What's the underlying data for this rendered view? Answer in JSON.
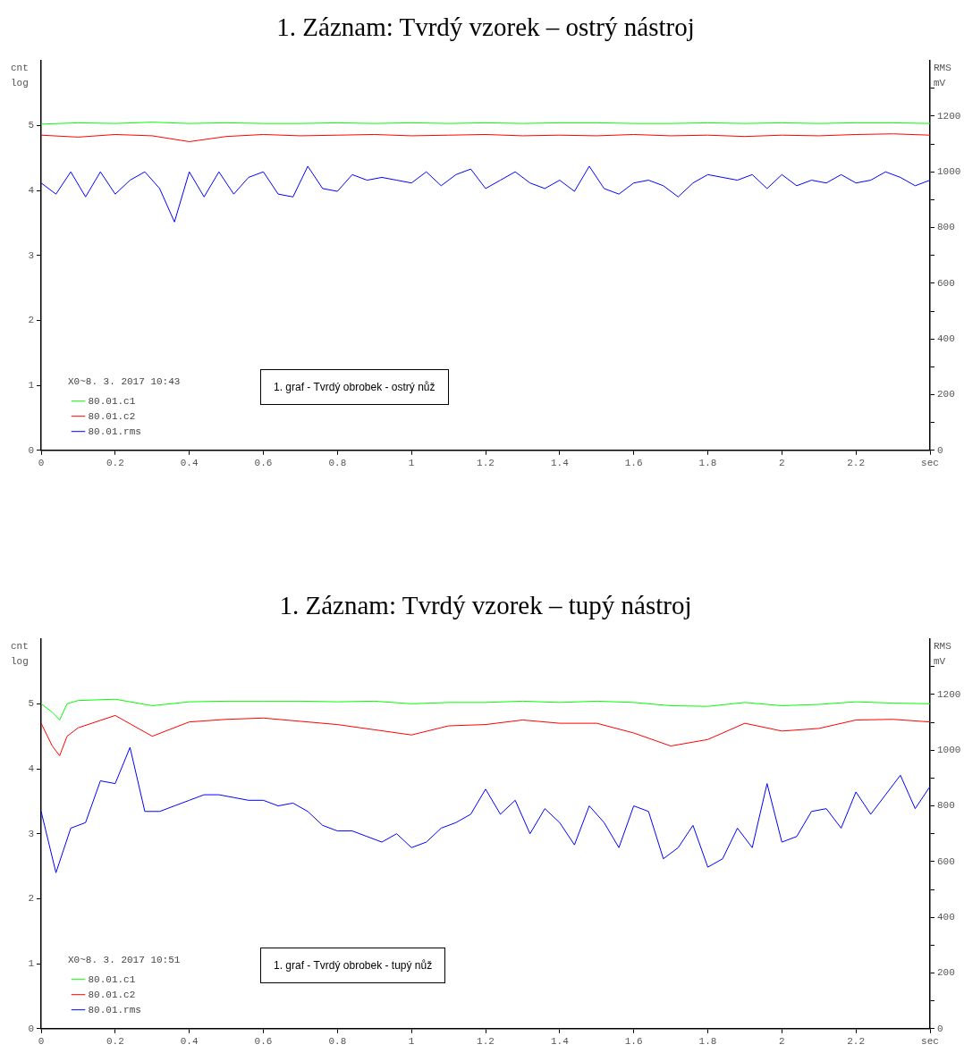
{
  "chart_data": [
    {
      "type": "line",
      "title": "1. Záznam: Tvrdý vzorek – ostrý nástroj",
      "ylabel": "cnt log",
      "y2label": "RMS mV",
      "legend": "bottom left",
      "legend_title": "X0~8. 3. 2017 10:43",
      "annotations": [
        "1. graf - Tvrdý obrobek - ostrý nůž"
      ],
      "x": [
        0,
        0.04,
        0.08,
        0.12,
        0.16,
        0.2,
        0.24,
        0.28,
        0.32,
        0.36,
        0.4,
        0.44,
        0.48,
        0.52,
        0.56,
        0.6,
        0.64,
        0.68,
        0.72,
        0.76,
        0.8,
        0.84,
        0.88,
        0.92,
        0.96,
        1,
        1.04,
        1.08,
        1.12,
        1.16,
        1.2,
        1.24,
        1.28,
        1.32,
        1.36,
        1.4,
        1.44,
        1.48,
        1.52,
        1.56,
        1.6,
        1.64,
        1.68,
        1.72,
        1.76,
        1.8,
        1.84,
        1.88,
        1.92,
        1.96,
        2,
        2.04,
        2.08,
        2.12,
        2.16,
        2.2,
        2.24,
        2.28,
        2.32,
        2.36,
        2.4
      ],
      "xlim": [
        0,
        2.4
      ],
      "xticks": [
        0,
        0.2,
        0.4,
        0.6,
        0.8,
        1,
        1.2,
        1.4,
        1.6,
        1.8,
        2,
        2.2,
        {
          "value": 2.4,
          "label": "sec"
        }
      ],
      "ylim": [
        0,
        6
      ],
      "yticks": [
        0,
        1,
        2,
        3,
        4,
        5
      ],
      "y2lim": [
        0,
        1400
      ],
      "y2ticks": [
        0,
        {
          "value": 100,
          "label": null
        },
        200,
        {
          "value": 300,
          "label": null
        },
        400,
        {
          "value": 500,
          "label": null
        },
        600,
        {
          "value": 700,
          "label": null
        },
        800,
        {
          "value": 900,
          "label": null
        },
        1000,
        {
          "value": 1100,
          "label": null
        },
        1200,
        {
          "value": 1300,
          "label": null
        }
      ],
      "series": [
        {
          "name": "80.01.c1",
          "color": "#00ff00",
          "x": [
            0,
            0.1,
            0.2,
            0.3,
            0.4,
            0.5,
            0.6,
            0.7,
            0.8,
            0.9,
            1,
            1.1,
            1.2,
            1.3,
            1.4,
            1.5,
            1.6,
            1.7,
            1.8,
            1.9,
            2,
            2.1,
            2.2,
            2.3,
            2.4
          ],
          "values": [
            5.02,
            5.04,
            5.03,
            5.05,
            5.03,
            5.04,
            5.03,
            5.03,
            5.04,
            5.03,
            5.04,
            5.03,
            5.04,
            5.03,
            5.04,
            5.04,
            5.03,
            5.03,
            5.04,
            5.03,
            5.04,
            5.03,
            5.04,
            5.04,
            5.03
          ]
        },
        {
          "name": "80.01.c2",
          "color": "#ff0000",
          "x": [
            0,
            0.1,
            0.2,
            0.3,
            0.4,
            0.5,
            0.6,
            0.7,
            0.8,
            0.9,
            1,
            1.1,
            1.2,
            1.3,
            1.4,
            1.5,
            1.6,
            1.7,
            1.8,
            1.9,
            2,
            2.1,
            2.2,
            2.3,
            2.4
          ],
          "values": [
            4.85,
            4.82,
            4.86,
            4.84,
            4.75,
            4.83,
            4.86,
            4.84,
            4.85,
            4.86,
            4.84,
            4.85,
            4.86,
            4.84,
            4.85,
            4.84,
            4.86,
            4.84,
            4.85,
            4.83,
            4.85,
            4.84,
            4.86,
            4.87,
            4.85
          ]
        },
        {
          "name": "80.01.rms",
          "color": "#0000ff",
          "axis": "y2",
          "values": [
            960,
            920,
            1000,
            910,
            1000,
            920,
            970,
            1000,
            940,
            820,
            1000,
            910,
            1000,
            920,
            980,
            1000,
            920,
            910,
            1020,
            940,
            930,
            990,
            970,
            980,
            970,
            960,
            1000,
            950,
            990,
            1010,
            940,
            970,
            1000,
            960,
            940,
            970,
            930,
            1020,
            940,
            920,
            960,
            970,
            950,
            910,
            960,
            990,
            980,
            970,
            990,
            940,
            990,
            950,
            970,
            960,
            990,
            960,
            970,
            1000,
            980,
            950,
            970
          ]
        }
      ]
    },
    {
      "type": "line",
      "title": "1. Záznam: Tvrdý vzorek – tupý nástroj",
      "ylabel": "cnt log",
      "y2label": "RMS mV",
      "legend": "bottom left",
      "legend_title": "X0~8. 3. 2017 10:51",
      "annotations": [
        "1. graf - Tvrdý obrobek - tupý nůž"
      ],
      "x": [
        0,
        0.04,
        0.08,
        0.12,
        0.16,
        0.2,
        0.24,
        0.28,
        0.32,
        0.36,
        0.4,
        0.44,
        0.48,
        0.52,
        0.56,
        0.6,
        0.64,
        0.68,
        0.72,
        0.76,
        0.8,
        0.84,
        0.88,
        0.92,
        0.96,
        1,
        1.04,
        1.08,
        1.12,
        1.16,
        1.2,
        1.24,
        1.28,
        1.32,
        1.36,
        1.4,
        1.44,
        1.48,
        1.52,
        1.56,
        1.6,
        1.64,
        1.68,
        1.72,
        1.76,
        1.8,
        1.84,
        1.88,
        1.92,
        1.96,
        2,
        2.04,
        2.08,
        2.12,
        2.16,
        2.2,
        2.24,
        2.28,
        2.32,
        2.36,
        2.4
      ],
      "xlim": [
        0,
        2.4
      ],
      "xticks": [
        0,
        0.2,
        0.4,
        0.6,
        0.8,
        1,
        1.2,
        1.4,
        1.6,
        1.8,
        2,
        2.2,
        {
          "value": 2.4,
          "label": "sec"
        }
      ],
      "ylim": [
        0,
        6
      ],
      "yticks": [
        0,
        1,
        2,
        3,
        4,
        5
      ],
      "y2lim": [
        0,
        1400
      ],
      "y2ticks": [
        0,
        {
          "value": 100,
          "label": null
        },
        200,
        {
          "value": 300,
          "label": null
        },
        400,
        {
          "value": 500,
          "label": null
        },
        600,
        {
          "value": 700,
          "label": null
        },
        800,
        {
          "value": 900,
          "label": null
        },
        1000,
        {
          "value": 1100,
          "label": null
        },
        1200,
        {
          "value": 1300,
          "label": null
        }
      ],
      "series": [
        {
          "name": "80.01.c1",
          "color": "#00ff00",
          "x": [
            0,
            0.03,
            0.05,
            0.07,
            0.1,
            0.2,
            0.3,
            0.4,
            0.5,
            0.6,
            0.7,
            0.8,
            0.9,
            1,
            1.1,
            1.2,
            1.3,
            1.4,
            1.5,
            1.6,
            1.7,
            1.8,
            1.9,
            2,
            2.1,
            2.2,
            2.3,
            2.4
          ],
          "values": [
            5.0,
            4.87,
            4.75,
            5.0,
            5.05,
            5.07,
            4.97,
            5.03,
            5.04,
            5.04,
            5.04,
            5.03,
            5.04,
            5.0,
            5.02,
            5.02,
            5.04,
            5.02,
            5.04,
            5.02,
            4.97,
            4.96,
            5.02,
            4.97,
            4.99,
            5.03,
            5.01,
            5.0
          ]
        },
        {
          "name": "80.01.c2",
          "color": "#ff0000",
          "x": [
            0,
            0.03,
            0.05,
            0.07,
            0.1,
            0.2,
            0.3,
            0.4,
            0.5,
            0.6,
            0.7,
            0.8,
            0.9,
            1,
            1.1,
            1.2,
            1.3,
            1.4,
            1.5,
            1.6,
            1.7,
            1.8,
            1.9,
            2,
            2.1,
            2.2,
            2.3,
            2.4
          ],
          "values": [
            4.7,
            4.35,
            4.2,
            4.5,
            4.63,
            4.82,
            4.5,
            4.72,
            4.76,
            4.78,
            4.73,
            4.68,
            4.6,
            4.52,
            4.66,
            4.68,
            4.75,
            4.7,
            4.7,
            4.55,
            4.35,
            4.45,
            4.7,
            4.58,
            4.62,
            4.75,
            4.76,
            4.72
          ]
        },
        {
          "name": "80.01.rms",
          "color": "#0000ff",
          "axis": "y2",
          "values": [
            780,
            560,
            720,
            740,
            890,
            880,
            1010,
            780,
            780,
            800,
            820,
            840,
            840,
            830,
            820,
            820,
            800,
            810,
            780,
            730,
            710,
            710,
            690,
            670,
            700,
            650,
            670,
            720,
            740,
            770,
            860,
            770,
            820,
            700,
            790,
            740,
            660,
            800,
            740,
            650,
            800,
            780,
            610,
            650,
            730,
            580,
            610,
            720,
            650,
            880,
            670,
            690,
            780,
            790,
            720,
            850,
            770,
            840,
            910,
            790,
            870
          ]
        }
      ]
    }
  ]
}
